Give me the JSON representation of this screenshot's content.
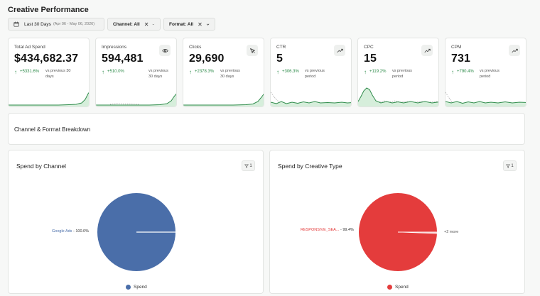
{
  "page": {
    "title": "Creative Performance"
  },
  "filters": {
    "date": {
      "label": "Last 30 Days",
      "range": "(Apr 06 - May 06, 2026)",
      "icon": "calendar-icon"
    },
    "channel": {
      "label": "Channel: All"
    },
    "format": {
      "label": "Format: All"
    }
  },
  "kpis": [
    {
      "label": "Total Ad Spend",
      "value": "$434,682.37",
      "change": "+5331.6%",
      "vs": "vs previous 30 days",
      "icon": ""
    },
    {
      "label": "Impressions",
      "value": "594,481",
      "change": "+510.0%",
      "vs": "vs previous 30 days",
      "icon": "eye-icon"
    },
    {
      "label": "Clicks",
      "value": "29,690",
      "change": "+2378.3%",
      "vs": "vs previous 30 days",
      "icon": "cursor-icon"
    },
    {
      "label": "CTR",
      "value": "5",
      "change": "+306.3%",
      "vs": "vs previous period",
      "icon": "trend-up-icon"
    },
    {
      "label": "CPC",
      "value": "15",
      "change": "+119.2%",
      "vs": "vs previous period",
      "icon": "trend-up-icon"
    },
    {
      "label": "CPM",
      "value": "731",
      "change": "+790.4%",
      "vs": "vs previous period",
      "icon": "trend-up-icon"
    }
  ],
  "breakdown": {
    "title": "Channel & Format Breakdown"
  },
  "panels": {
    "channel": {
      "title": "Spend by Channel",
      "filter_count": "1",
      "slice_name": "Google Ads",
      "slice_pct": "100.0%",
      "legend": "Spend",
      "color": "#4a6ea9"
    },
    "creative": {
      "title": "Spend by Creative Type",
      "filter_count": "1",
      "slice_name": "RESPONSIVE_SEA...",
      "slice_pct": "99.4%",
      "more": "+2 more",
      "legend": "Spend",
      "color": "#e43c3c"
    }
  },
  "colors": {
    "positive": "#2e8b4a",
    "spark_line": "#2e8b4a",
    "spark_fill": "#d6eedb"
  }
}
